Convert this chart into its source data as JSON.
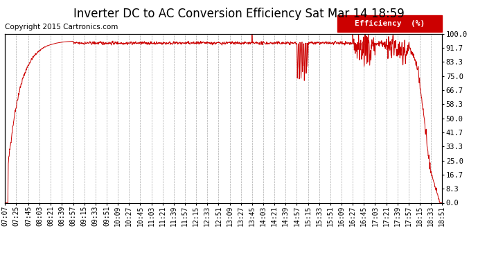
{
  "title": "Inverter DC to AC Conversion Efficiency Sat Mar 14 18:59",
  "copyright": "Copyright 2015 Cartronics.com",
  "legend_label": "Efficiency  (%)",
  "legend_bg": "#cc0000",
  "legend_text_color": "#ffffff",
  "line_color": "#cc0000",
  "bg_color": "#ffffff",
  "grid_color": "#aaaaaa",
  "ylabel_right": [
    "100.0",
    "91.7",
    "83.3",
    "75.0",
    "66.7",
    "58.3",
    "50.0",
    "41.7",
    "33.3",
    "25.0",
    "16.7",
    "8.3",
    "0.0"
  ],
  "ytick_values": [
    100.0,
    91.7,
    83.3,
    75.0,
    66.7,
    58.3,
    50.0,
    41.7,
    33.3,
    25.0,
    16.7,
    8.3,
    0.0
  ],
  "xlabels": [
    "07:07",
    "07:25",
    "07:45",
    "08:03",
    "08:21",
    "08:39",
    "08:57",
    "09:15",
    "09:33",
    "09:51",
    "10:09",
    "10:27",
    "10:45",
    "11:03",
    "11:21",
    "11:39",
    "11:57",
    "12:15",
    "12:33",
    "12:51",
    "13:09",
    "13:27",
    "13:45",
    "14:03",
    "14:21",
    "14:39",
    "14:57",
    "15:15",
    "15:33",
    "15:51",
    "16:09",
    "16:27",
    "16:45",
    "17:03",
    "17:21",
    "17:39",
    "17:57",
    "18:15",
    "18:33",
    "18:51"
  ],
  "title_fontsize": 12,
  "copyright_fontsize": 7.5,
  "tick_fontsize": 7
}
